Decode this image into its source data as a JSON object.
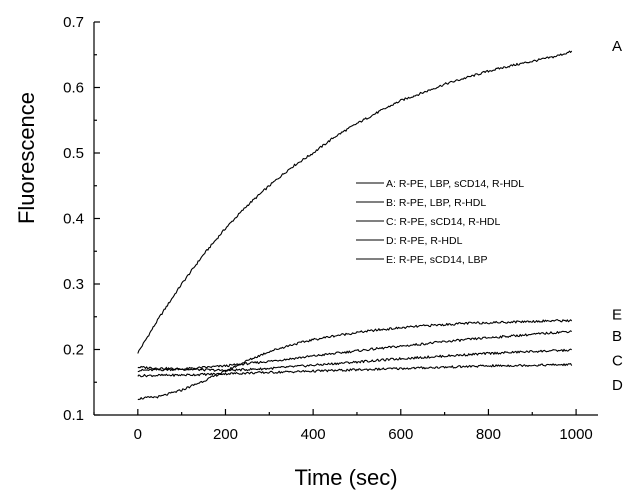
{
  "chart_data": {
    "type": "line",
    "title": "",
    "xlabel": "Time (sec)",
    "ylabel": "Fluorescence",
    "xlim": [
      -100,
      1050
    ],
    "ylim": [
      0.1,
      0.7
    ],
    "xticks": [
      0,
      200,
      400,
      600,
      800,
      1000
    ],
    "yticks": [
      0.1,
      0.2,
      0.3,
      0.4,
      0.5,
      0.6,
      0.7
    ],
    "xtick_labels": [
      "0",
      "200",
      "400",
      "600",
      "800",
      "1000"
    ],
    "ytick_labels": [
      "0.1",
      "0.2",
      "0.3",
      "0.4",
      "0.5",
      "0.6",
      "0.7"
    ],
    "grid": false,
    "legend_position": "center-right",
    "legend": [
      "A: R-PE, LBP, sCD14, R-HDL",
      "B: R-PE, LBP, R-HDL",
      "C: R-PE, sCD14, R-HDL",
      "D: R-PE, R-HDL",
      "E: R-PE, sCD14, LBP"
    ],
    "series": [
      {
        "name": "A",
        "x": [
          0,
          50,
          100,
          150,
          200,
          250,
          300,
          350,
          400,
          450,
          500,
          550,
          600,
          650,
          700,
          750,
          800,
          850,
          900,
          950,
          990
        ],
        "y": [
          0.195,
          0.25,
          0.3,
          0.345,
          0.385,
          0.42,
          0.45,
          0.478,
          0.5,
          0.525,
          0.545,
          0.563,
          0.58,
          0.592,
          0.605,
          0.615,
          0.625,
          0.633,
          0.64,
          0.647,
          0.655
        ]
      },
      {
        "name": "B",
        "x": [
          0,
          100,
          200,
          300,
          400,
          500,
          600,
          700,
          800,
          900,
          990
        ],
        "y": [
          0.168,
          0.17,
          0.175,
          0.182,
          0.19,
          0.198,
          0.205,
          0.212,
          0.218,
          0.223,
          0.228
        ]
      },
      {
        "name": "C",
        "x": [
          0,
          100,
          200,
          300,
          400,
          500,
          600,
          700,
          800,
          900,
          990
        ],
        "y": [
          0.173,
          0.17,
          0.168,
          0.171,
          0.176,
          0.181,
          0.186,
          0.19,
          0.194,
          0.197,
          0.199
        ]
      },
      {
        "name": "D",
        "x": [
          0,
          100,
          200,
          300,
          400,
          500,
          600,
          700,
          800,
          900,
          990
        ],
        "y": [
          0.16,
          0.161,
          0.163,
          0.165,
          0.167,
          0.169,
          0.171,
          0.173,
          0.175,
          0.176,
          0.177
        ]
      },
      {
        "name": "E",
        "x": [
          0,
          50,
          100,
          150,
          200,
          250,
          300,
          350,
          400,
          450,
          500,
          550,
          600,
          650,
          700,
          750,
          800,
          850,
          900,
          950,
          990
        ],
        "y": [
          0.125,
          0.128,
          0.138,
          0.152,
          0.167,
          0.183,
          0.197,
          0.207,
          0.215,
          0.221,
          0.226,
          0.23,
          0.233,
          0.236,
          0.238,
          0.24,
          0.241,
          0.242,
          0.243,
          0.244,
          0.244
        ]
      }
    ],
    "curve_end_labels": [
      {
        "label": "A",
        "y": 0.665
      },
      {
        "label": "E",
        "y": 0.255
      },
      {
        "label": "B",
        "y": 0.222
      },
      {
        "label": "C",
        "y": 0.185
      },
      {
        "label": "D",
        "y": 0.147
      }
    ]
  }
}
